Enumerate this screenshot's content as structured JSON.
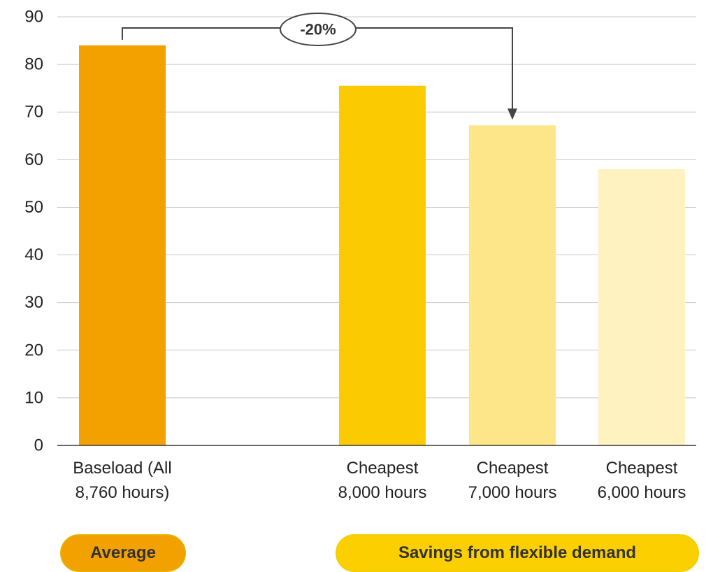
{
  "chart_data": {
    "type": "bar",
    "categories": [
      [
        "Baseload (All",
        "8,760 hours)"
      ],
      [
        "Cheapest",
        "8,000 hours"
      ],
      [
        "Cheapest",
        "7,000 hours"
      ],
      [
        "Cheapest",
        "6,000 hours"
      ]
    ],
    "values": [
      84,
      75.5,
      67.2,
      58
    ],
    "ylim": [
      0,
      90
    ],
    "yticks": [
      0,
      10,
      20,
      30,
      40,
      50,
      60,
      70,
      80,
      90
    ],
    "grid": true,
    "colors": [
      "#f2a100",
      "#fcca00",
      "#fde68a",
      "#fef2c0"
    ],
    "annotation": {
      "text": "-20%",
      "from_category": 0,
      "to_category": 2
    }
  },
  "groups": {
    "average": {
      "label": "Average",
      "color": "#f2a100"
    },
    "flexible": {
      "label": "Savings from flexible demand",
      "color": "#fcd000"
    }
  }
}
